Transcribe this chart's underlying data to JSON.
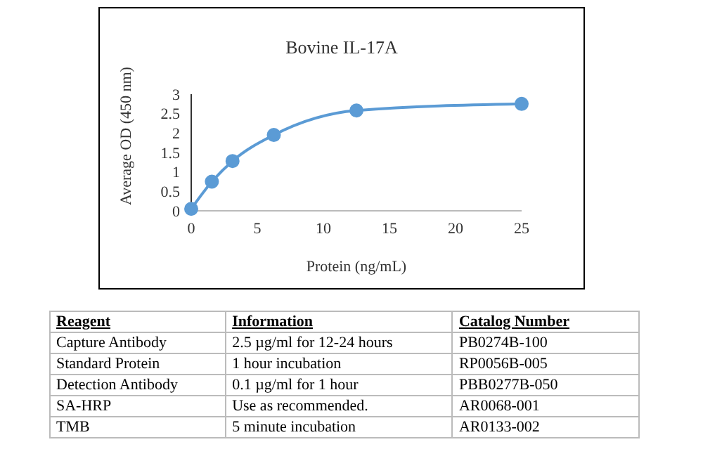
{
  "chart_data": {
    "type": "line",
    "title": "Bovine IL-17A",
    "xlabel": "Protein (ng/mL)",
    "ylabel": "Average OD (450 nm)",
    "x": [
      0,
      1.5625,
      3.125,
      6.25,
      12.5,
      25
    ],
    "series": [
      {
        "color": "#5b9bd5",
        "values": [
          0.05,
          0.75,
          1.28,
          1.95,
          2.58,
          2.75
        ]
      }
    ],
    "xlim": [
      0,
      25
    ],
    "xticks": [
      0,
      5,
      10,
      15,
      20,
      25
    ],
    "ylim": [
      0,
      3
    ],
    "yticks": [
      0,
      0.5,
      1,
      1.5,
      2,
      2.5,
      3
    ],
    "grid": false,
    "legend": false,
    "marker": "circle",
    "line_style": "solid",
    "annotations": [
      "Reagent",
      "Information",
      "Catalog Number",
      "Capture Antibody",
      "2.5 µg/ml for 12-24 hours",
      "PB0274B-100",
      "Standard Protein",
      "1 hour incubation",
      "RP0056B-005",
      "Detection Antibody",
      "0.1 µg/ml for 1 hour",
      "PBB0277B-050",
      "SA-HRP",
      "Use as recommended.",
      "AR0068-001",
      "TMB",
      "5 minute incubation",
      "AR0133-002"
    ]
  }
}
